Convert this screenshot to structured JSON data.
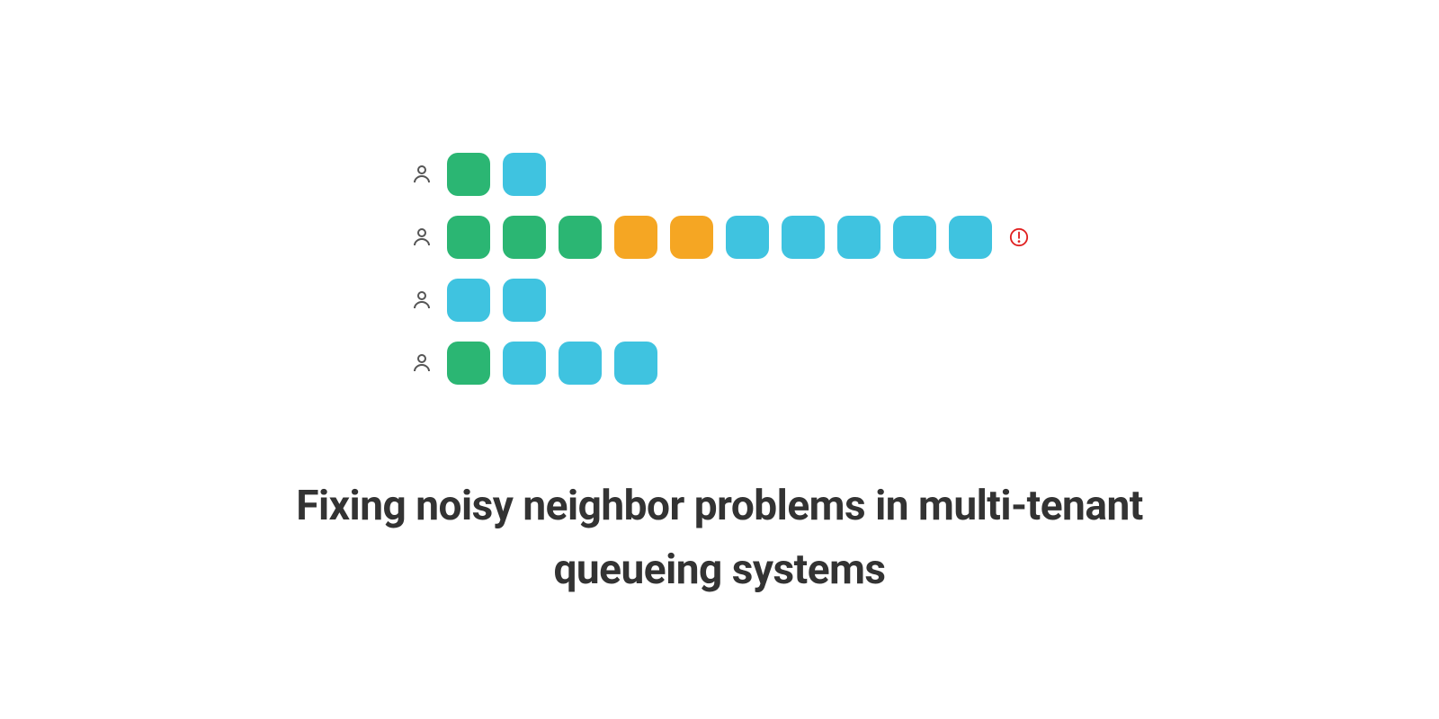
{
  "title": "Fixing noisy neighbor problems in multi-tenant queueing systems",
  "diagram": {
    "type": "infographic",
    "background_color": "#ffffff",
    "colors": {
      "green": "#2bb673",
      "cyan": "#3fc3e0",
      "orange": "#f5a623",
      "user_icon_stroke": "#555555",
      "alert_color": "#e02020",
      "title_color": "#333333"
    },
    "block_size": 48,
    "block_radius": 12,
    "block_gap": 14,
    "row_gap": 22,
    "title_fontsize": 46,
    "title_fontweight": 700,
    "rows": [
      {
        "blocks": [
          "green",
          "cyan"
        ],
        "alert": false
      },
      {
        "blocks": [
          "green",
          "green",
          "green",
          "orange",
          "orange",
          "cyan",
          "cyan",
          "cyan",
          "cyan",
          "cyan"
        ],
        "alert": true
      },
      {
        "blocks": [
          "cyan",
          "cyan"
        ],
        "alert": false
      },
      {
        "blocks": [
          "green",
          "cyan",
          "cyan",
          "cyan"
        ],
        "alert": false
      }
    ]
  }
}
